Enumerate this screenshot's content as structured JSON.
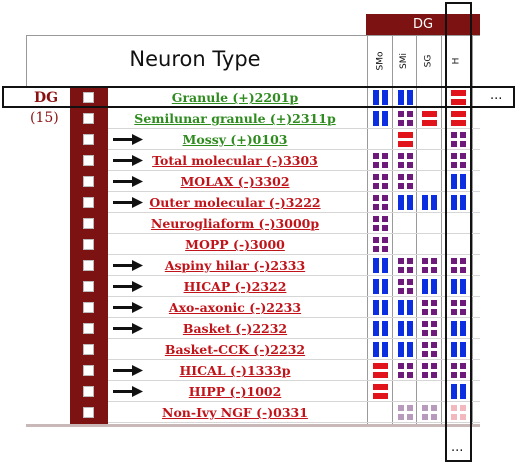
{
  "header": {
    "region_group": "DG",
    "title": "Neuron Type",
    "columns": [
      "SMo",
      "SMi",
      "SG",
      "H"
    ]
  },
  "region": {
    "name": "DG",
    "count": "(15)"
  },
  "ellipsis": "...",
  "colors": {
    "dark_red": "#7d1212",
    "excitatory_green": "#2e8b1e",
    "inhibitory_red": "#c0141a",
    "axon_red": "#e0141a",
    "dendrite_blue": "#0a2ee0",
    "both_purple": "#6e1a7a",
    "faded_purple": "#b89abc",
    "faded_pink": "#f2b8bd"
  },
  "rows": [
    {
      "label": "Granule (+)2201p",
      "arrow": false,
      "color": "green",
      "cells": [
        "blue",
        "blue",
        "",
        "red"
      ]
    },
    {
      "label": "Semilunar granule (+)2311p",
      "arrow": false,
      "color": "green",
      "cells": [
        "blue",
        "purple",
        "red",
        "red"
      ]
    },
    {
      "label": "Mossy (+)0103",
      "arrow": true,
      "color": "green",
      "cells": [
        "",
        "red",
        "",
        "purple"
      ]
    },
    {
      "label": "Total molecular (-)3303",
      "arrow": true,
      "color": "red",
      "cells": [
        "purple",
        "purple",
        "",
        "purple"
      ]
    },
    {
      "label": "MOLAX (-)3302",
      "arrow": true,
      "color": "red",
      "cells": [
        "purple",
        "purple",
        "",
        "blue"
      ]
    },
    {
      "label": "Outer molecular (-)3222",
      "arrow": true,
      "color": "red",
      "cells": [
        "purple",
        "blue",
        "blue",
        "blue"
      ]
    },
    {
      "label": "Neurogliaform (-)3000p",
      "arrow": false,
      "color": "red",
      "cells": [
        "purple",
        "",
        "",
        ""
      ]
    },
    {
      "label": "MOPP (-)3000",
      "arrow": false,
      "color": "red",
      "cells": [
        "purple",
        "",
        "",
        ""
      ]
    },
    {
      "label": "Aspiny hilar (-)2333",
      "arrow": true,
      "color": "red",
      "cells": [
        "blue",
        "purple",
        "purple",
        "purple"
      ]
    },
    {
      "label": "HICAP (-)2322",
      "arrow": true,
      "color": "red",
      "cells": [
        "blue",
        "purple",
        "blue",
        "blue"
      ]
    },
    {
      "label": "Axo-axonic (-)2233",
      "arrow": true,
      "color": "red",
      "cells": [
        "blue",
        "blue",
        "purple",
        "purple"
      ]
    },
    {
      "label": "Basket (-)2232",
      "arrow": true,
      "color": "red",
      "cells": [
        "blue",
        "blue",
        "purple",
        "blue"
      ]
    },
    {
      "label": "Basket-CCK (-)2232",
      "arrow": false,
      "color": "red",
      "cells": [
        "blue",
        "blue",
        "purple",
        "blue"
      ]
    },
    {
      "label": "HICAL (-)1333p",
      "arrow": true,
      "color": "red",
      "cells": [
        "red",
        "purple",
        "purple",
        "purple"
      ]
    },
    {
      "label": "HIPP (-)1002",
      "arrow": true,
      "color": "red",
      "cells": [
        "red",
        "",
        "",
        "blue"
      ]
    },
    {
      "label": "Non-Ivy NGF (-)0331",
      "arrow": false,
      "color": "red",
      "cells": [
        "",
        "faded-purple",
        "faded-purple",
        "faded-pink"
      ]
    }
  ]
}
